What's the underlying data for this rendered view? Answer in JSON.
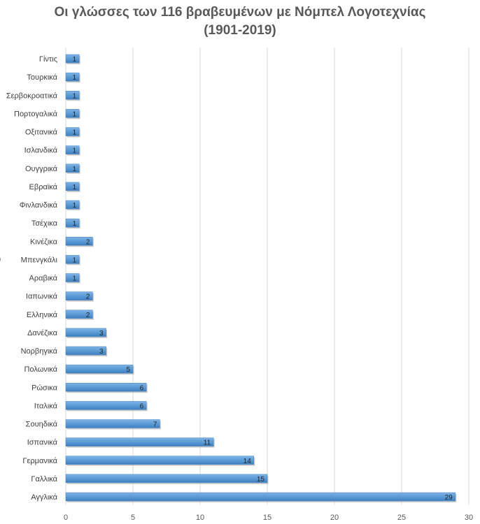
{
  "chart_data": {
    "type": "bar",
    "orientation": "horizontal",
    "title": "Οι γλώσσες των 116 βραβευμένων με Νόμπελ Λογοτεχνίας",
    "subtitle": "(1901-2019)",
    "xlabel": "",
    "ylabel": "",
    "categories": [
      "Γίντις",
      "Τουρκικά",
      "Σερβοκροατικά",
      "Πορτογαλικά",
      "Οξιτανικά",
      "Ισλανδικά",
      "Ουγγρικά",
      "Εβραϊκά",
      "Φινλανδικά",
      "Τσέχικα",
      "Κινέζικα",
      "Μπενγκάλι",
      "Αραβικά",
      "Ιαπωνικά",
      "Ελληνικά",
      "Δανέζικα",
      "Νορβηγικά",
      "Πολωνικά",
      "Ρώσικα",
      "Ιταλικά",
      "Σουηδικά",
      "Ισπανικά",
      "Γερμανικά",
      "Γαλλικά",
      "Αγγλικά"
    ],
    "values": [
      1,
      1,
      1,
      1,
      1,
      1,
      1,
      1,
      1,
      1,
      2,
      1,
      1,
      2,
      2,
      3,
      3,
      5,
      6,
      6,
      7,
      11,
      14,
      15,
      29
    ],
    "xlim": [
      0,
      30
    ],
    "xticks": [
      0,
      5,
      10,
      15,
      20,
      25,
      30
    ],
    "grid": true,
    "legend": "none",
    "bar_color": "#5b9bd5",
    "axis_stub_label": "0"
  }
}
